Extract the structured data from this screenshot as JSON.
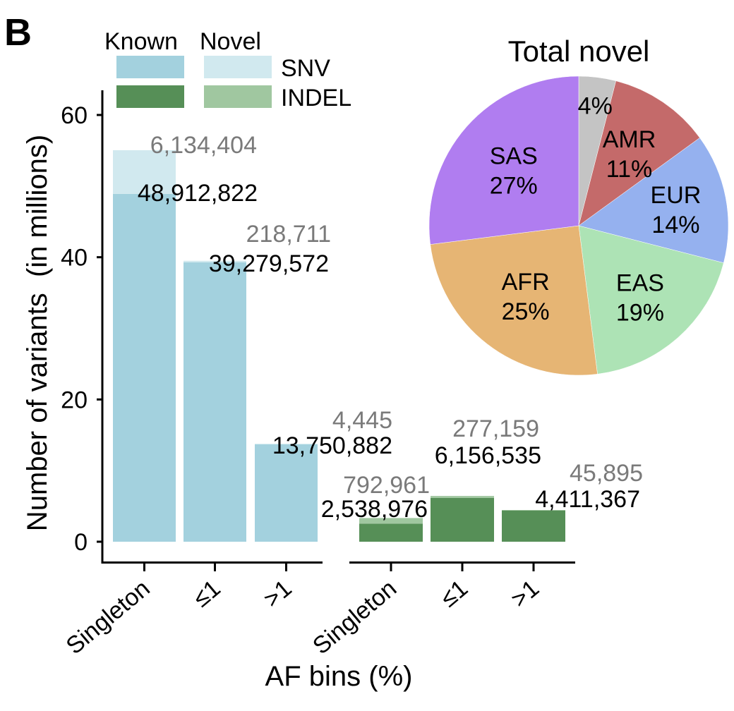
{
  "panel_label": "B",
  "legend": {
    "known_label": "Known",
    "novel_label": "Novel",
    "snv_label": "SNV",
    "indel_label": "INDEL"
  },
  "colors": {
    "snv_known": "#a3d1de",
    "snv_novel": "#d1e9ef",
    "indel_known": "#568f57",
    "indel_novel": "#a0c7a0",
    "novel_text": "#7a7a7a",
    "known_text": "#000000"
  },
  "chart_data": [
    {
      "type": "bar",
      "stacked": true,
      "xlabel": "AF bins (%)",
      "ylabel": "Number of variants  (in millions)",
      "ylim": [
        0,
        63
      ],
      "yticks": [
        0,
        20,
        40,
        60
      ],
      "groups": [
        {
          "name": "SNV",
          "categories": [
            "Singleton",
            "≤1",
            ">1"
          ],
          "known": [
            48.912822,
            39.279572,
            13.750882
          ],
          "novel": [
            6.134404,
            0.218711,
            0.004445
          ],
          "known_labels": [
            "48,912,822",
            "39,279,572",
            "13,750,882"
          ],
          "novel_labels": [
            "6,134,404",
            "218,711",
            "4,445"
          ]
        },
        {
          "name": "INDEL",
          "categories": [
            "Singleton",
            "≤1",
            ">1"
          ],
          "known": [
            2.538976,
            6.156535,
            4.411367
          ],
          "novel": [
            0.792961,
            0.277159,
            0.045895
          ],
          "known_labels": [
            "2,538,976",
            "6,156,535",
            "4,411,367"
          ],
          "novel_labels": [
            "792,961",
            "277,159",
            "45,895"
          ]
        }
      ]
    },
    {
      "type": "pie",
      "title": "Total novel",
      "slices": [
        {
          "label": "",
          "percent_label": "4%",
          "value": 4,
          "color": "#c4c4c4"
        },
        {
          "label": "AMR",
          "percent_label": "11%",
          "value": 11,
          "color": "#c46a6a"
        },
        {
          "label": "EUR",
          "percent_label": "14%",
          "value": 14,
          "color": "#95b1ef"
        },
        {
          "label": "EAS",
          "percent_label": "19%",
          "value": 19,
          "color": "#ade3b5"
        },
        {
          "label": "AFR",
          "percent_label": "25%",
          "value": 25,
          "color": "#e6b574"
        },
        {
          "label": "SAS",
          "percent_label": "27%",
          "value": 27,
          "color": "#b07df0"
        }
      ]
    }
  ]
}
